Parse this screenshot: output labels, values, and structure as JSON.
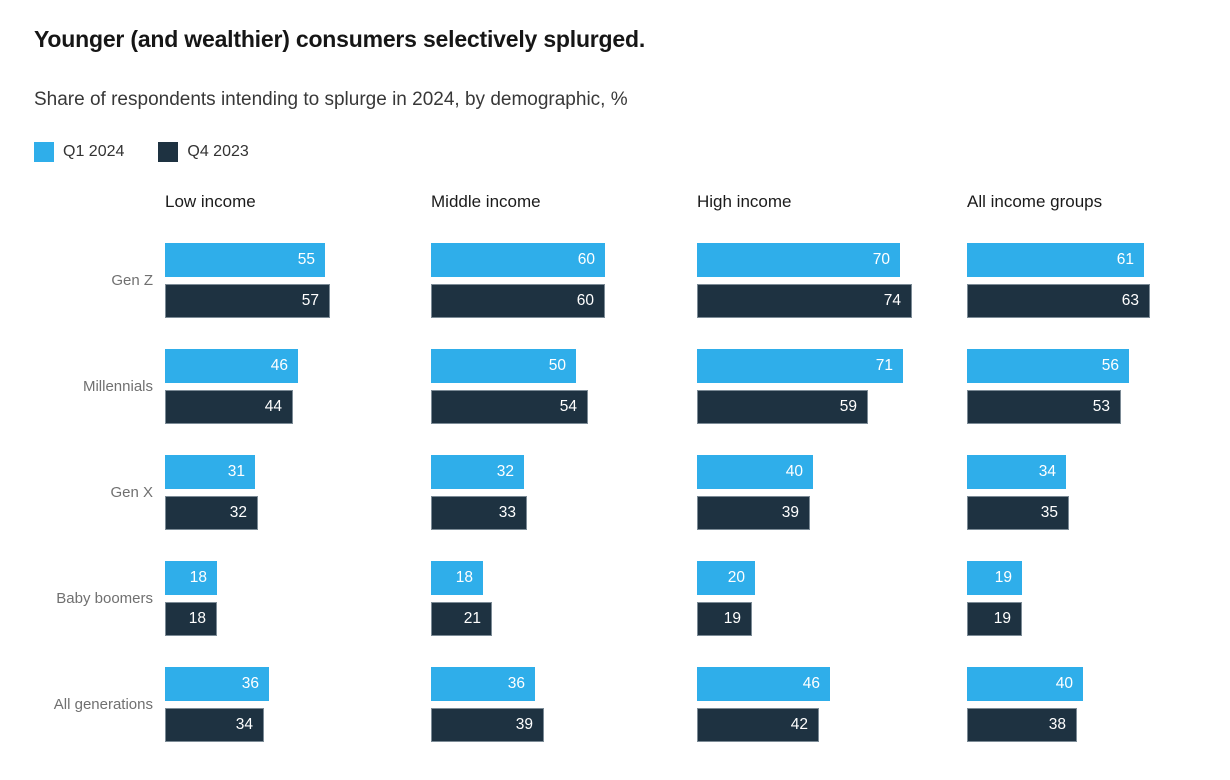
{
  "chart_data": {
    "type": "bar",
    "orientation": "horizontal",
    "title": "Younger (and wealthier) consumers selectively splurged.",
    "subtitle": "Share of respondents intending to splurge in 2024, by demographic, %",
    "unit": "%",
    "legend_position": "top-left",
    "grid": false,
    "value_labels": "inside-end-white",
    "axis": {
      "min": 0,
      "max_observed": 74,
      "ticks_shown": false
    },
    "legend": [
      {
        "label": "Q1 2024",
        "color": "#2FAEEA"
      },
      {
        "label": "Q4 2023",
        "color": "#1E3241"
      }
    ],
    "series_names": [
      "Q1 2024",
      "Q4 2023"
    ],
    "column_groups": [
      "Low income",
      "Middle income",
      "High income",
      "All income groups"
    ],
    "rows": [
      {
        "label": "Gen Z",
        "cells": [
          [
            55,
            57
          ],
          [
            60,
            60
          ],
          [
            70,
            74
          ],
          [
            61,
            63
          ]
        ]
      },
      {
        "label": "Millennials",
        "cells": [
          [
            46,
            44
          ],
          [
            50,
            54
          ],
          [
            71,
            59
          ],
          [
            56,
            53
          ]
        ]
      },
      {
        "label": "Gen X",
        "cells": [
          [
            31,
            32
          ],
          [
            32,
            33
          ],
          [
            40,
            39
          ],
          [
            34,
            35
          ]
        ]
      },
      {
        "label": "Baby boomers",
        "cells": [
          [
            18,
            18
          ],
          [
            18,
            21
          ],
          [
            20,
            19
          ],
          [
            19,
            19
          ]
        ]
      },
      {
        "label": "All generations",
        "cells": [
          [
            36,
            34
          ],
          [
            36,
            39
          ],
          [
            46,
            42
          ],
          [
            40,
            38
          ]
        ]
      }
    ]
  }
}
